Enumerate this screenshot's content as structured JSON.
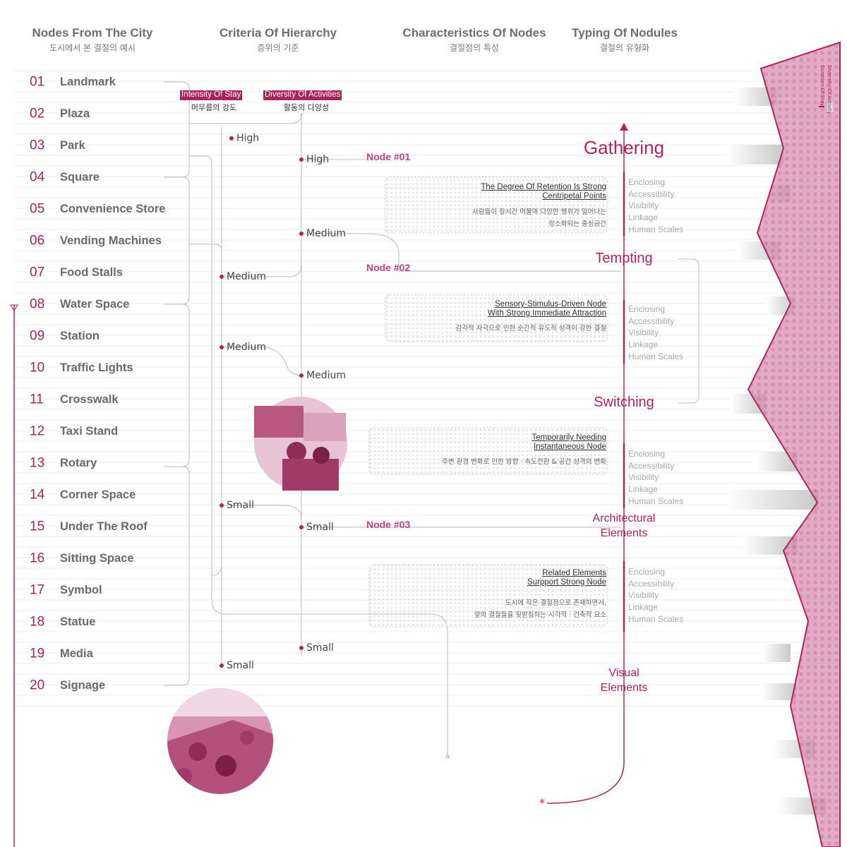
{
  "headers": [
    {
      "title": "Nodes From The City",
      "subtitle": "도시에서 본 결절의 예시"
    },
    {
      "title": "Criteria Of Hierarchy",
      "subtitle": "층위의 기준"
    },
    {
      "title": "Characteristics Of Nodes",
      "subtitle": "결절점의 특성"
    },
    {
      "title": "Typing Of Nodules",
      "subtitle": "결절의 유형화"
    }
  ],
  "nodes": [
    {
      "number": "01",
      "label": "Landmark"
    },
    {
      "number": "02",
      "label": "Plaza"
    },
    {
      "number": "03",
      "label": "Park"
    },
    {
      "number": "04",
      "label": "Square"
    },
    {
      "number": "05",
      "label": "Convenience Store"
    },
    {
      "number": "06",
      "label": "Vending Machines"
    },
    {
      "number": "07",
      "label": "Food Stalls"
    },
    {
      "number": "08",
      "label": "Water Space"
    },
    {
      "number": "09",
      "label": "Station"
    },
    {
      "number": "10",
      "label": "Traffic Lights"
    },
    {
      "number": "11",
      "label": "Crosswalk"
    },
    {
      "number": "12",
      "label": "Taxi Stand"
    },
    {
      "number": "13",
      "label": "Rotary"
    },
    {
      "number": "14",
      "label": "Corner Space"
    },
    {
      "number": "15",
      "label": "Under The Roof"
    },
    {
      "number": "16",
      "label": "Sitting Space"
    },
    {
      "number": "17",
      "label": "Symbol"
    },
    {
      "number": "18",
      "label": "Statue"
    },
    {
      "number": "19",
      "label": "Media"
    },
    {
      "number": "20",
      "label": "Signage"
    }
  ],
  "criteria": [
    {
      "title": "Intensity Of Stay",
      "subtitle": "머무름의 강도"
    },
    {
      "title": "Diversity Of Activities",
      "subtitle": "활동의 다양성"
    }
  ],
  "stay_levels": [
    "High",
    "Medium",
    "Medium",
    "Small",
    "Small"
  ],
  "activity_levels": [
    "High",
    "Medium",
    "Medium",
    "Small",
    "Small"
  ],
  "node_labels": [
    "Node #01",
    "Node #02",
    "Node #03"
  ],
  "characteristics": [
    {
      "title": [
        "The Degree Of Retention Is Strong",
        "Centripetal Points"
      ],
      "description": [
        "사람들이 장시간 머물며 다양한 행위가 일어나는",
        "장소화되는 중심공간"
      ],
      "attributes": [
        "Enclosing",
        "Accessibility",
        "Visibility",
        "Linkage",
        "Human Scales"
      ]
    },
    {
      "title": [
        "Sensory-Stimulus-Driven Node",
        "With Strong Immediate Attraction"
      ],
      "description": [
        "감각적 자극으로 인한 순간적 유도적 성격이 강한 결절"
      ],
      "attributes": [
        "Enclosing",
        "Accessibility",
        "Visibility",
        "Linkage",
        "Human Scales"
      ]
    },
    {
      "title": [
        "Temporarily Needing",
        "Instantaneous Node"
      ],
      "description": [
        "주변 환경 변화로 인한 방향 · 속도전환 & 공간 성격의 변화"
      ],
      "attributes": [
        "Enclosing",
        "Accessibility",
        "Visibility",
        "Linkage",
        "Human Scales"
      ]
    },
    {
      "title": [
        "Related Elements",
        "Surpport Strong Node"
      ],
      "description": [
        "도시에 작은 결절점으로 존재하면서,",
        "앞의 결절들을 뒷받침하는 시각적 · 건축적 요소"
      ],
      "attributes": [
        "Enclosing",
        "Accessibility",
        "Visibility",
        "Linkage",
        "Human Scales"
      ]
    }
  ],
  "types": [
    {
      "lines": [
        "Gathering"
      ]
    },
    {
      "lines": [
        "Tempting"
      ]
    },
    {
      "lines": [
        "Switching"
      ]
    },
    {
      "lines": [
        "Architectural",
        "Elements"
      ]
    },
    {
      "lines": [
        "Visual",
        "Elements"
      ]
    }
  ],
  "legend": [
    "Duration Of Stay",
    "Diversity Of Activity"
  ]
}
